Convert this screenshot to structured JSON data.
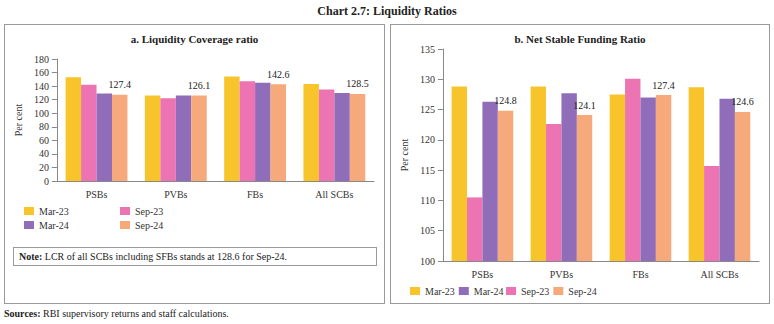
{
  "title": "Chart 2.7: Liquidity Ratios",
  "sources": "Sources: RBI supervisory returns and staff calculations.",
  "chart_data": [
    {
      "type": "bar",
      "title": "a. Liquidity Coverage ratio",
      "ylabel": "Per cent",
      "categories": [
        "PSBs",
        "PVBs",
        "FBs",
        "All SCBs"
      ],
      "series": [
        {
          "name": "Mar-23",
          "color": "#F7C52B",
          "values": [
            153,
            126,
            154,
            143
          ]
        },
        {
          "name": "Sep-23",
          "color": "#EC74B2",
          "values": [
            142,
            122,
            147,
            135
          ]
        },
        {
          "name": "Mar-24",
          "color": "#8F6DB9",
          "values": [
            129,
            126,
            145,
            130
          ]
        },
        {
          "name": "Sep-24",
          "color": "#F6A97A",
          "values": [
            127.4,
            126.1,
            142.6,
            128.5
          ],
          "data_labels": true
        }
      ],
      "ylim": [
        0,
        180
      ],
      "yticks": [
        0,
        20,
        40,
        60,
        80,
        100,
        120,
        140,
        160,
        180
      ],
      "grid": false,
      "note": "Note: LCR of all SCBs including SFBs stands at 128.6 for Sep-24."
    },
    {
      "type": "bar",
      "title": "b. Net Stable Funding Ratio",
      "ylabel": "Per cent",
      "categories": [
        "PSBs",
        "PVBs",
        "FBs",
        "All SCBs"
      ],
      "series": [
        {
          "name": "Mar-23",
          "color": "#F7C52B",
          "values": [
            128.8,
            128.8,
            127.5,
            128.7
          ]
        },
        {
          "name": "Sep-23",
          "color": "#EC74B2",
          "values": [
            110.5,
            122.6,
            130.1,
            115.7
          ]
        },
        {
          "name": "Mar-24",
          "color": "#8F6DB9",
          "values": [
            126.3,
            127.7,
            127.0,
            126.8
          ]
        },
        {
          "name": "Sep-24",
          "color": "#F6A97A",
          "values": [
            124.8,
            124.1,
            127.4,
            124.6
          ],
          "data_labels": true
        }
      ],
      "ylim": [
        100,
        135
      ],
      "yticks": [
        100,
        105,
        110,
        115,
        120,
        125,
        130,
        135
      ],
      "grid": false
    }
  ]
}
